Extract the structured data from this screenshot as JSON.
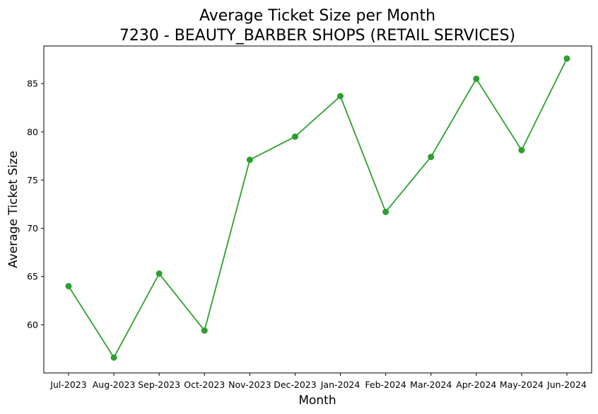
{
  "chart_data": {
    "type": "line",
    "title": "Average Ticket Size per Month",
    "subtitle": "7230 - BEAUTY_BARBER SHOPS (RETAIL SERVICES)",
    "xlabel": "Month",
    "ylabel": "Average Ticket Size",
    "categories": [
      "Jul-2023",
      "Aug-2023",
      "Sep-2023",
      "Oct-2023",
      "Nov-2023",
      "Dec-2023",
      "Jan-2024",
      "Feb-2024",
      "Mar-2024",
      "Apr-2024",
      "May-2024",
      "Jun-2024"
    ],
    "series": [
      {
        "values": [
          64.0,
          56.6,
          65.3,
          59.4,
          77.1,
          79.5,
          83.7,
          71.7,
          77.4,
          85.5,
          78.1,
          87.6
        ],
        "color": "#2ca02c"
      }
    ],
    "yticks": [
      60,
      65,
      70,
      75,
      80,
      85
    ],
    "ylim": [
      55.0,
      88.9
    ],
    "grid": false,
    "legend": "none"
  }
}
